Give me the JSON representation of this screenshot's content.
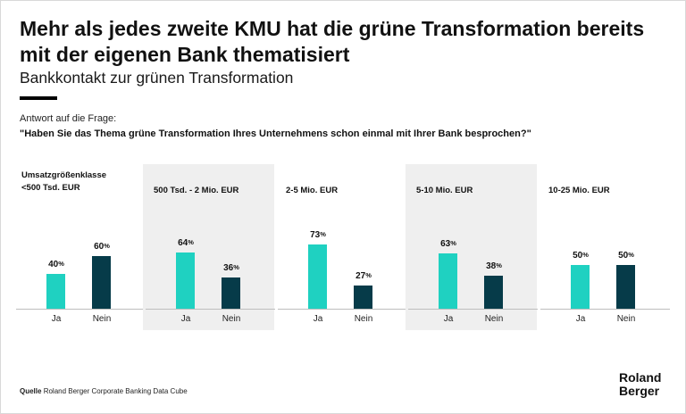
{
  "header": {
    "title": "Mehr als jedes zweite KMU hat die grüne Transformation bereits mit der eigenen Bank thematisiert",
    "subtitle": "Bankkontakt zur grünen Transformation",
    "question_intro": "Antwort auf die Frage:",
    "question": "\"Haben Sie das Thema grüne Transformation Ihres Unternehmens schon einmal mit Ihrer Bank besprochen?\""
  },
  "legend_label": "Umsatzgrößenklasse",
  "colors": {
    "ja": "#1fd1c1",
    "nein": "#063b49",
    "panel_shade": "#efefef"
  },
  "chart_data": {
    "type": "bar",
    "categories": [
      "Ja",
      "Nein"
    ],
    "unit": "%",
    "ylim": [
      0,
      100
    ],
    "panels": [
      {
        "name": "<500 Tsd. EUR",
        "values": [
          40,
          60
        ]
      },
      {
        "name": "500 Tsd. - 2 Mio. EUR",
        "values": [
          64,
          36
        ]
      },
      {
        "name": "2-5 Mio. EUR",
        "values": [
          73,
          27
        ]
      },
      {
        "name": "5-10 Mio. EUR",
        "values": [
          63,
          38
        ]
      },
      {
        "name": "10-25 Mio. EUR",
        "values": [
          50,
          50
        ]
      }
    ]
  },
  "footer": {
    "source_label": "Quelle",
    "source_text": "Roland Berger Corporate Banking Data Cube",
    "logo_line1": "Roland",
    "logo_line2": "Berger"
  }
}
